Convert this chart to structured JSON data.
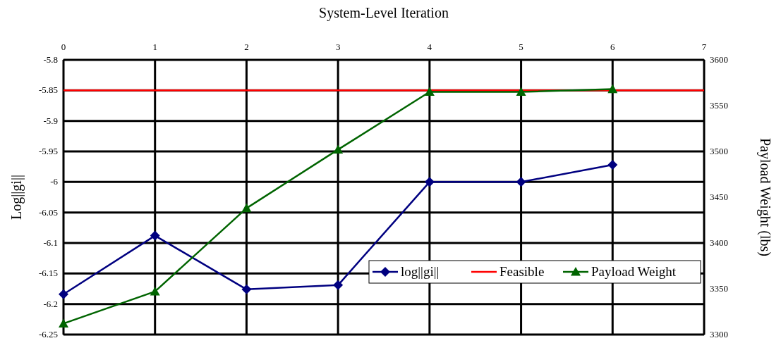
{
  "chart_data": {
    "type": "line",
    "xlabel": "System-Level Iteration",
    "ylabel": "Log||gi||",
    "y2label": "Payload Weight (lbs)",
    "x": [
      0,
      1,
      2,
      3,
      4,
      5,
      6
    ],
    "xlim": [
      0,
      7
    ],
    "xticks": [
      0,
      1,
      2,
      3,
      4,
      5,
      6,
      7
    ],
    "ylim": [
      -6.25,
      -5.8
    ],
    "yticks": [
      -6.25,
      -6.2,
      -6.15,
      -6.1,
      -6.05,
      -6,
      -5.95,
      -5.9,
      -5.85,
      -5.8
    ],
    "y2lim": [
      3300,
      3600
    ],
    "y2ticks": [
      3300,
      3350,
      3400,
      3450,
      3500,
      3550,
      3600
    ],
    "grid": true,
    "legend": "bottom right",
    "series": [
      {
        "name": "log||gi||",
        "color": "#000080",
        "marker": "diamond",
        "values": [
          -6.184,
          -6.088,
          -6.176,
          -6.169,
          -6.0,
          -6.0,
          -5.972
        ]
      },
      {
        "name": "Feasible",
        "color": "#ff0000",
        "marker": "none",
        "x": [
          0,
          7
        ],
        "values": [
          -5.85,
          -5.85
        ]
      },
      {
        "name": "Payload Weight",
        "color": "#006400",
        "marker": "triangle",
        "axis": "y2",
        "values": [
          3312,
          3347,
          3438,
          3502,
          3565,
          3565,
          3568
        ]
      }
    ]
  }
}
